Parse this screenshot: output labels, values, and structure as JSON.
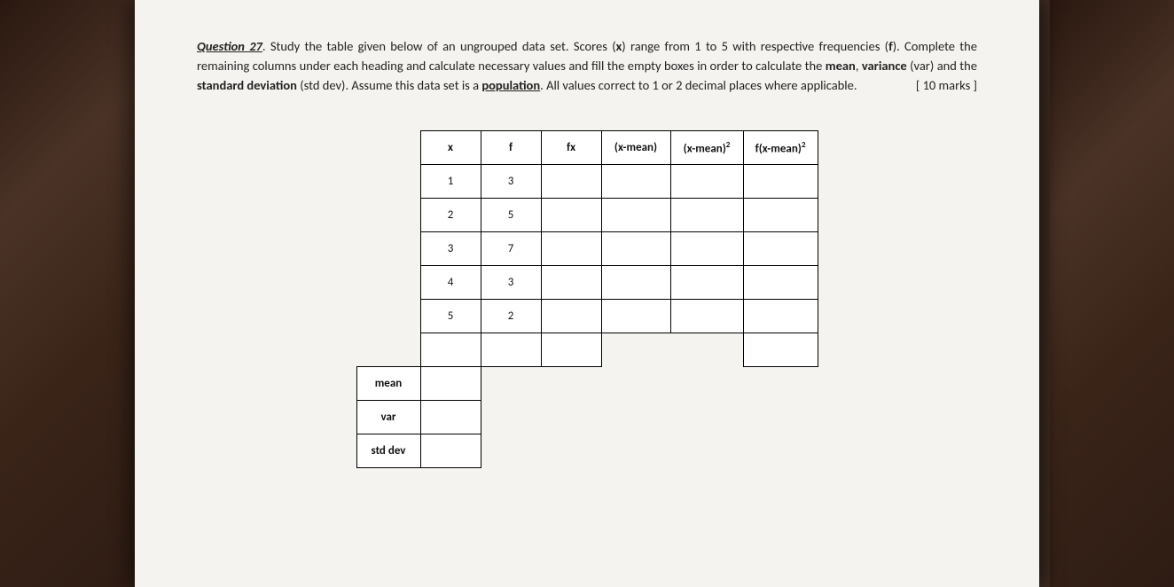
{
  "question": {
    "label": "Question 27",
    "text_part1": ". Study the table given below of an ungrouped data set. Scores (",
    "x_bold": "x",
    "text_part2": ") range from 1 to 5 with respective frequencies (",
    "f_bold": "f",
    "text_part3": "). Complete the remaining columns under each heading and calculate necessary values and fill the empty boxes in order to calculate the ",
    "mean_bold": "mean",
    "comma1": ", ",
    "variance_bold": "variance",
    "var_paren": " (var)",
    "text_part4": " and the ",
    "stddev_bold": "standard deviation",
    "stddev_paren": " (std dev)",
    "text_part5": ". Assume this data set is a ",
    "population_bold": "population",
    "text_part6": ". All values correct to 1 or 2 decimal places where applicable.",
    "marks": "[ 10 marks ]"
  },
  "table": {
    "headers": {
      "x": "x",
      "f": "f",
      "fx": "fx",
      "xmean": "(x-mean)",
      "xmean2_a": "(x-mean)",
      "xmean2_sup": "2",
      "fxmean2_a": "f(x-mean)",
      "fxmean2_sup": "2"
    },
    "rows": [
      {
        "x": "1",
        "f": "3"
      },
      {
        "x": "2",
        "f": "5"
      },
      {
        "x": "3",
        "f": "7"
      },
      {
        "x": "4",
        "f": "3"
      },
      {
        "x": "5",
        "f": "2"
      }
    ],
    "summary_labels": {
      "mean": "mean",
      "var": "var",
      "stddev": "std dev"
    }
  }
}
